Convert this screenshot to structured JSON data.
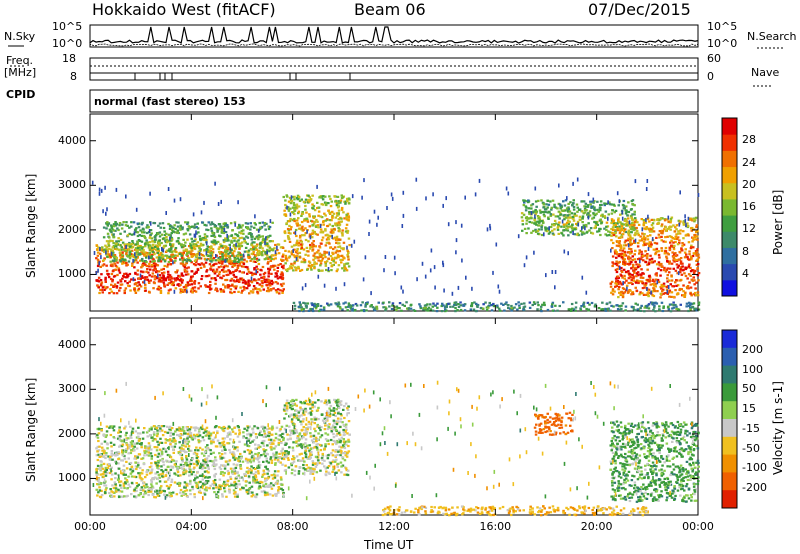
{
  "header": {
    "title": "Hokkaido West (fitACF)",
    "beam": "Beam 06",
    "date": "07/Dec/2015"
  },
  "param_panels": {
    "nsky_label": "N.Sky",
    "nsearch_label": "N.Search",
    "noise_ticks_left": [
      "10^5",
      "10^0"
    ],
    "noise_ticks_right": [
      "10^5",
      "10^0"
    ],
    "freq_label": "Freq.",
    "freq_unit": "[MHz]",
    "freq_ticks": [
      "18",
      "8"
    ],
    "nave_label": "Nave",
    "nave_ticks": [
      "60",
      "0"
    ],
    "cpid_label": "CPID",
    "cpid_text": "normal (fast stereo) 153"
  },
  "chart_data": [
    {
      "type": "heatmap",
      "name": "power",
      "ylabel": "Slant Range [km]",
      "xlabel": "Time UT",
      "ylim": [
        180,
        4600
      ],
      "yticks": [
        1000,
        2000,
        3000,
        4000
      ],
      "xlim": [
        0,
        24
      ],
      "xticks": [
        "00:00",
        "04:00",
        "08:00",
        "12:00",
        "16:00",
        "20:00",
        "00:00"
      ],
      "colorbar": {
        "label": "Power [dB]",
        "ticks": [
          "4",
          "8",
          "12",
          "16",
          "20",
          "24",
          "28"
        ],
        "range": [
          0,
          32
        ],
        "colors": [
          "#1010e0",
          "#2a4ab0",
          "#2f6fa0",
          "#3d8a6a",
          "#3f9e40",
          "#7ab830",
          "#c8c020",
          "#f0a000",
          "#f07000",
          "#f03000",
          "#e00000"
        ]
      },
      "regions": [
        {
          "t0": 0.2,
          "t1": 7.6,
          "r0": 600,
          "r1": 1700,
          "level": 0.85
        },
        {
          "t0": 0.5,
          "t1": 7.2,
          "r0": 1300,
          "r1": 2200,
          "level": 0.45
        },
        {
          "t0": 7.6,
          "t1": 10.2,
          "r0": 1100,
          "r1": 2800,
          "level": 0.65
        },
        {
          "t0": 17.0,
          "t1": 21.5,
          "r0": 1900,
          "r1": 2700,
          "level": 0.45
        },
        {
          "t0": 20.5,
          "t1": 24.0,
          "r0": 500,
          "r1": 2300,
          "level": 0.8
        },
        {
          "t0": 8.0,
          "t1": 24.0,
          "r0": 200,
          "r1": 400,
          "level": 0.3
        }
      ]
    },
    {
      "type": "heatmap",
      "name": "velocity",
      "ylabel": "Slant Range [km]",
      "xlabel": "Time UT",
      "ylim": [
        180,
        4600
      ],
      "yticks": [
        1000,
        2000,
        3000,
        4000
      ],
      "xlim": [
        0,
        24
      ],
      "xticks": [
        "00:00",
        "04:00",
        "08:00",
        "12:00",
        "16:00",
        "20:00",
        "00:00"
      ],
      "colorbar": {
        "label": "Velocity [m s-1]",
        "ticks": [
          "200",
          "100",
          "50",
          "15",
          "-15",
          "-50",
          "-100",
          "-200"
        ],
        "colors": [
          "#1a2bd8",
          "#2b5fb0",
          "#2f7a70",
          "#3a9a3a",
          "#8fcf50",
          "#c8c8c8",
          "#f0c020",
          "#f09000",
          "#f06000",
          "#e02000"
        ]
      },
      "regions": [
        {
          "t0": 0.2,
          "t1": 7.6,
          "r0": 600,
          "r1": 2200,
          "level": 0.0
        },
        {
          "t0": 7.6,
          "t1": 10.2,
          "r0": 1100,
          "r1": 2800,
          "level": 0.0
        },
        {
          "t0": 17.5,
          "t1": 19.0,
          "r0": 2000,
          "r1": 2500,
          "level": -120
        },
        {
          "t0": 20.5,
          "t1": 24.0,
          "r0": 500,
          "r1": 2300,
          "level": 30
        },
        {
          "t0": 11.5,
          "t1": 22.0,
          "r0": 200,
          "r1": 400,
          "level": -40
        }
      ]
    }
  ]
}
